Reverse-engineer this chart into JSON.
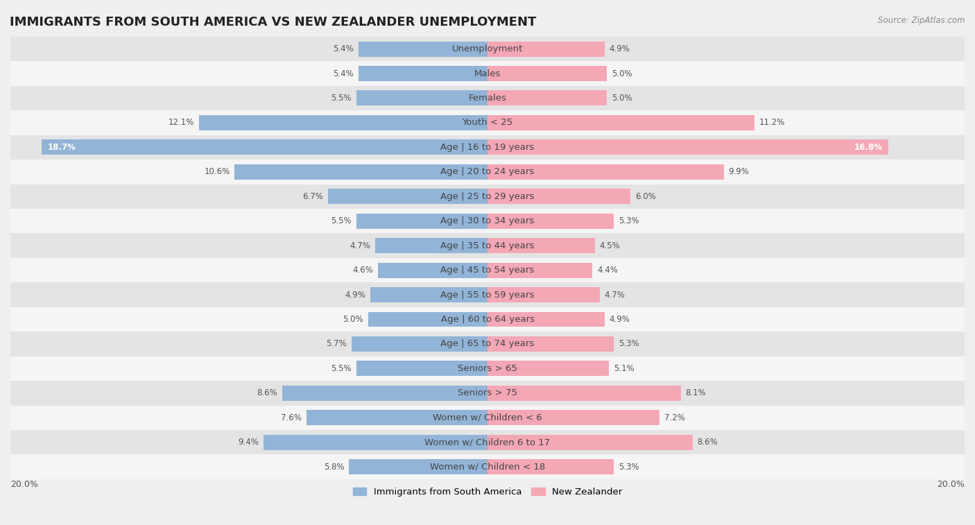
{
  "title": "IMMIGRANTS FROM SOUTH AMERICA VS NEW ZEALANDER UNEMPLOYMENT",
  "source": "Source: ZipAtlas.com",
  "categories": [
    "Unemployment",
    "Males",
    "Females",
    "Youth < 25",
    "Age | 16 to 19 years",
    "Age | 20 to 24 years",
    "Age | 25 to 29 years",
    "Age | 30 to 34 years",
    "Age | 35 to 44 years",
    "Age | 45 to 54 years",
    "Age | 55 to 59 years",
    "Age | 60 to 64 years",
    "Age | 65 to 74 years",
    "Seniors > 65",
    "Seniors > 75",
    "Women w/ Children < 6",
    "Women w/ Children 6 to 17",
    "Women w/ Children < 18"
  ],
  "left_values": [
    5.4,
    5.4,
    5.5,
    12.1,
    18.7,
    10.6,
    6.7,
    5.5,
    4.7,
    4.6,
    4.9,
    5.0,
    5.7,
    5.5,
    8.6,
    7.6,
    9.4,
    5.8
  ],
  "right_values": [
    4.9,
    5.0,
    5.0,
    11.2,
    16.8,
    9.9,
    6.0,
    5.3,
    4.5,
    4.4,
    4.7,
    4.9,
    5.3,
    5.1,
    8.1,
    7.2,
    8.6,
    5.3
  ],
  "left_color": "#92b4d7",
  "right_color": "#f4a7b5",
  "left_label": "Immigrants from South America",
  "right_label": "New Zealander",
  "background_color": "#efefef",
  "row_color_even": "#e4e4e4",
  "row_color_odd": "#f5f5f5",
  "axis_max": 20.0,
  "title_fontsize": 13,
  "label_fontsize": 9.5,
  "value_fontsize": 8.5
}
